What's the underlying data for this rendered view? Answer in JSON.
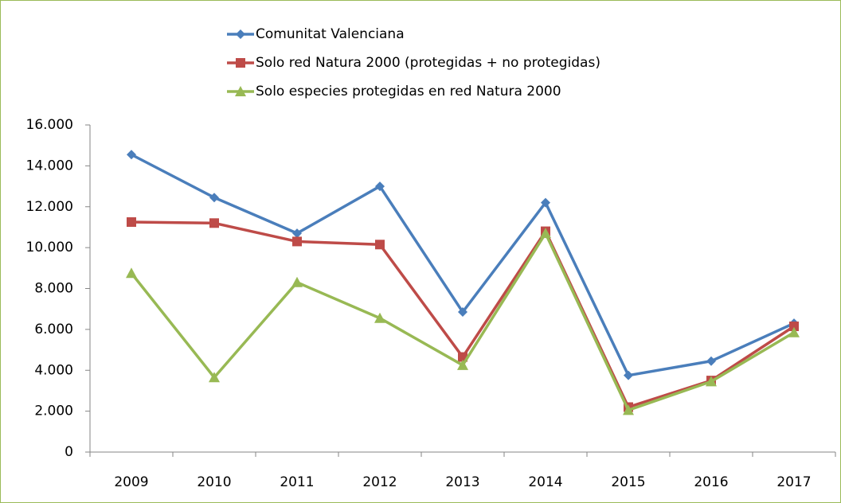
{
  "chart_data": {
    "type": "line",
    "categories": [
      "2009",
      "2010",
      "2011",
      "2012",
      "2013",
      "2014",
      "2015",
      "2016",
      "2017"
    ],
    "series": [
      {
        "name": "Comunitat Valenciana",
        "color": "#4a7ebb",
        "marker": "diamond",
        "values": [
          14550,
          12450,
          10700,
          13000,
          6850,
          12200,
          3750,
          4450,
          6300
        ]
      },
      {
        "name": "Solo red Natura 2000 (protegidas + no protegidas)",
        "color": "#be4b48",
        "marker": "square",
        "values": [
          11250,
          11200,
          10300,
          10150,
          4650,
          10800,
          2200,
          3500,
          6150
        ]
      },
      {
        "name": "Solo especies protegidas en red Natura 2000",
        "color": "#98b954",
        "marker": "triangle",
        "values": [
          8750,
          3650,
          8300,
          6550,
          4250,
          10700,
          2050,
          3450,
          5850
        ]
      }
    ],
    "ylim": [
      0,
      16000
    ],
    "yticks": [
      0,
      {
        "value": 2000,
        "label": "2.000"
      },
      {
        "value": 4000,
        "label": "4.000"
      },
      {
        "value": 6000,
        "label": "6.000"
      },
      {
        "value": 8000,
        "label": "8.000"
      },
      {
        "value": 10000,
        "label": "10.000"
      },
      {
        "value": 12000,
        "label": "12.000"
      },
      {
        "value": 14000,
        "label": "14.000"
      },
      {
        "value": 16000,
        "label": "16.000"
      }
    ],
    "grid": false,
    "legend": "top"
  }
}
